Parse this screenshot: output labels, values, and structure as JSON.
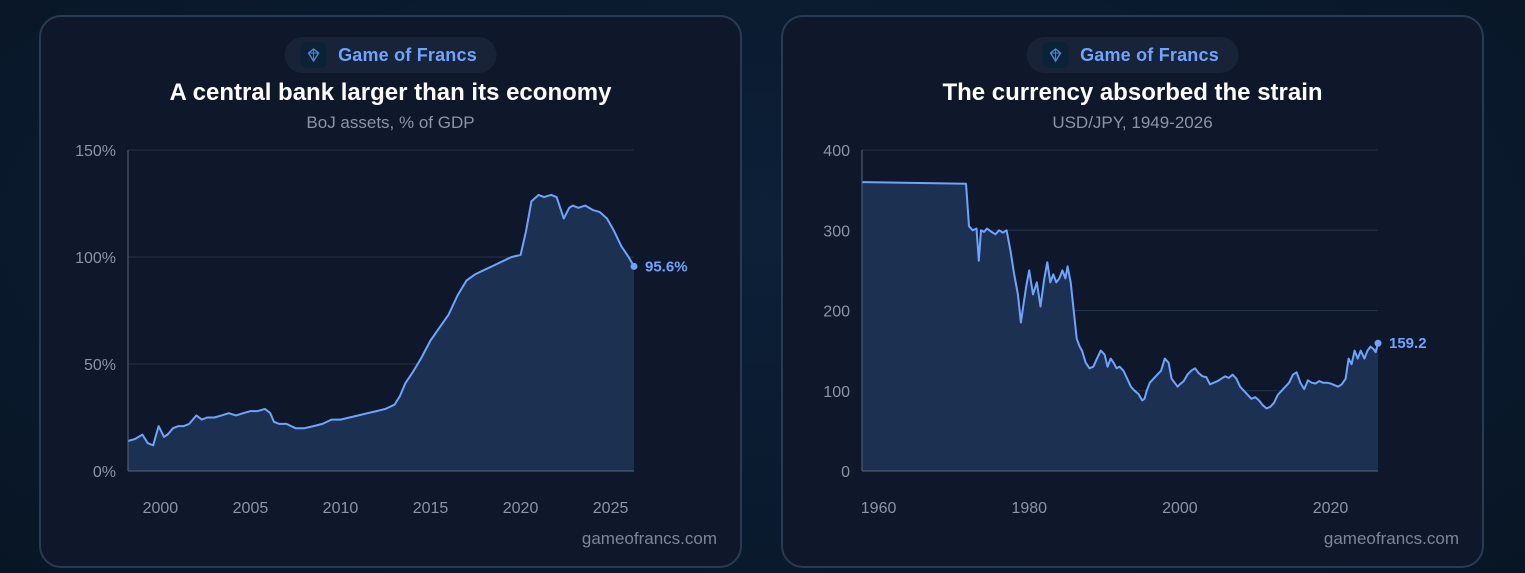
{
  "brand": {
    "name": "Game of Francs",
    "footer": "gameofrancs.com",
    "accent": "#6ea4ff"
  },
  "chart_data": [
    {
      "type": "area",
      "title": "A central bank larger than its economy",
      "subtitle": "BoJ assets, % of GDP",
      "xlabel": "",
      "ylabel": "",
      "xlim": [
        1998.2,
        2026.3
      ],
      "ylim": [
        0,
        150
      ],
      "y_ticks": [
        0,
        50,
        100,
        150
      ],
      "y_tick_labels": [
        "0%",
        "50%",
        "100%",
        "150%"
      ],
      "x_ticks": [
        2000,
        2005,
        2010,
        2015,
        2020,
        2025
      ],
      "x_tick_labels": [
        "2000",
        "2005",
        "2010",
        "2015",
        "2020",
        "2025"
      ],
      "end_label": "95.6%",
      "grid": true,
      "series": [
        {
          "x": [
            1998.2,
            1998.6,
            1999.0,
            1999.3,
            1999.6,
            1999.9,
            2000.2,
            2000.4,
            2000.7,
            2001.0,
            2001.3,
            2001.6,
            2002.0,
            2002.3,
            2002.6,
            2003.0,
            2003.4,
            2003.8,
            2004.2,
            2004.6,
            2005.0,
            2005.4,
            2005.8,
            2006.1,
            2006.3,
            2006.6,
            2007.0,
            2007.5,
            2008.0,
            2008.5,
            2009.0,
            2009.5,
            2010.0,
            2010.5,
            2011.0,
            2011.5,
            2012.0,
            2012.5,
            2013.0,
            2013.3,
            2013.6,
            2014.0,
            2014.5,
            2015.0,
            2015.5,
            2016.0,
            2016.5,
            2017.0,
            2017.5,
            2018.0,
            2018.5,
            2019.0,
            2019.5,
            2020.0,
            2020.3,
            2020.6,
            2021.0,
            2021.3,
            2021.7,
            2022.0,
            2022.4,
            2022.7,
            2022.9,
            2023.2,
            2023.6,
            2024.0,
            2024.4,
            2024.8,
            2025.2,
            2025.6,
            2026.0,
            2026.3
          ],
          "y": [
            14,
            15,
            17,
            13,
            12,
            21,
            16,
            17,
            20,
            21,
            21,
            22,
            26,
            24,
            25,
            25,
            26,
            27,
            26,
            27,
            28,
            28,
            29,
            27,
            23,
            22,
            22,
            20,
            20,
            21,
            22,
            24,
            24,
            25,
            26,
            27,
            28,
            29,
            31,
            35,
            41,
            46,
            53,
            61,
            67,
            73,
            82,
            89,
            92,
            94,
            96,
            98,
            100,
            101,
            112,
            126,
            129,
            128,
            129,
            128,
            118,
            123,
            124,
            123,
            124,
            122,
            121,
            118,
            112,
            105,
            100,
            95.6
          ]
        }
      ]
    },
    {
      "type": "area",
      "title": "The currency absorbed the strain",
      "subtitle": "USD/JPY, 1949-2026",
      "xlabel": "",
      "ylabel": "",
      "xlim": [
        1957.8,
        2026.3
      ],
      "ylim": [
        0,
        400
      ],
      "y_ticks": [
        0,
        100,
        200,
        300,
        400
      ],
      "y_tick_labels": [
        "0",
        "100",
        "200",
        "300",
        "400"
      ],
      "x_ticks": [
        1960,
        1980,
        2000,
        2020
      ],
      "x_tick_labels": [
        "1960",
        "1980",
        "2000",
        "2020"
      ],
      "end_label": "159.2",
      "grid": true,
      "series": [
        {
          "x": [
            1957.8,
            1971.6,
            1972.0,
            1972.5,
            1973.0,
            1973.3,
            1973.6,
            1974.0,
            1974.4,
            1975.0,
            1975.5,
            1976.0,
            1976.5,
            1977.0,
            1977.5,
            1978.0,
            1978.5,
            1978.9,
            1979.2,
            1979.6,
            1980.0,
            1980.5,
            1981.0,
            1981.5,
            1982.0,
            1982.4,
            1982.8,
            1983.2,
            1983.6,
            1984.0,
            1984.4,
            1984.8,
            1985.1,
            1985.5,
            1985.9,
            1986.3,
            1986.7,
            1987.0,
            1987.5,
            1988.0,
            1988.5,
            1989.0,
            1989.5,
            1990.0,
            1990.4,
            1990.8,
            1991.2,
            1991.6,
            1992.0,
            1992.5,
            1993.0,
            1993.5,
            1994.0,
            1994.5,
            1995.0,
            1995.3,
            1995.6,
            1996.0,
            1996.5,
            1997.0,
            1997.5,
            1998.0,
            1998.5,
            1998.9,
            1999.3,
            1999.7,
            2000.0,
            2000.5,
            2001.0,
            2001.5,
            2002.0,
            2002.5,
            2003.0,
            2003.5,
            2004.0,
            2004.5,
            2005.0,
            2005.5,
            2006.0,
            2006.5,
            2007.0,
            2007.5,
            2008.0,
            2008.5,
            2009.0,
            2009.5,
            2010.0,
            2010.5,
            2011.0,
            2011.5,
            2012.0,
            2012.5,
            2013.0,
            2013.5,
            2014.0,
            2014.5,
            2015.0,
            2015.5,
            2016.0,
            2016.5,
            2017.0,
            2017.5,
            2018.0,
            2018.5,
            2019.0,
            2019.5,
            2020.0,
            2020.5,
            2021.0,
            2021.5,
            2022.0,
            2022.4,
            2022.8,
            2023.2,
            2023.6,
            2024.0,
            2024.5,
            2024.9,
            2025.3,
            2025.7,
            2026.0,
            2026.3
          ],
          "y": [
            360,
            358,
            305,
            300,
            302,
            262,
            300,
            298,
            302,
            298,
            295,
            300,
            297,
            300,
            275,
            245,
            220,
            185,
            205,
            230,
            250,
            220,
            235,
            205,
            240,
            260,
            235,
            245,
            235,
            240,
            250,
            240,
            255,
            235,
            200,
            165,
            155,
            150,
            135,
            128,
            130,
            140,
            150,
            145,
            130,
            140,
            135,
            128,
            130,
            125,
            115,
            105,
            100,
            96,
            88,
            90,
            100,
            110,
            115,
            120,
            125,
            140,
            135,
            115,
            110,
            105,
            108,
            112,
            120,
            125,
            128,
            122,
            118,
            117,
            108,
            110,
            112,
            115,
            118,
            116,
            120,
            115,
            105,
            100,
            95,
            90,
            92,
            88,
            82,
            78,
            80,
            85,
            95,
            100,
            105,
            110,
            120,
            123,
            110,
            102,
            113,
            110,
            109,
            112,
            110,
            110,
            109,
            107,
            105,
            108,
            115,
            140,
            133,
            150,
            140,
            150,
            140,
            150,
            155,
            152,
            148,
            159.2
          ]
        }
      ]
    }
  ]
}
